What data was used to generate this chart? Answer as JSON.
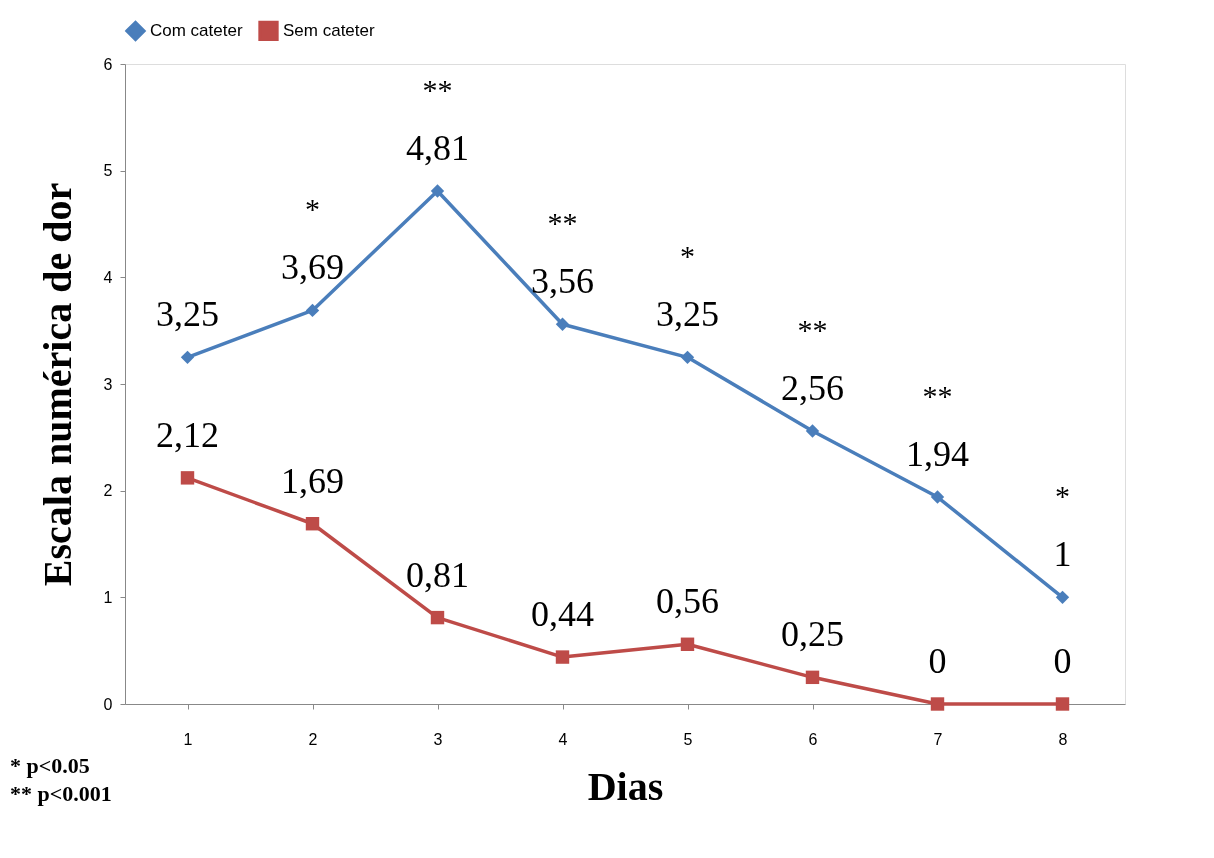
{
  "chart_data": {
    "type": "line",
    "xlabel": "Dias",
    "ylabel": "Escala numérica de dor",
    "categories": [
      "1",
      "2",
      "3",
      "4",
      "5",
      "6",
      "7",
      "8"
    ],
    "series": [
      {
        "name": "Com cateter",
        "color": "#4a7ebb",
        "marker": "diamond",
        "values": [
          3.25,
          3.69,
          4.81,
          3.56,
          3.25,
          2.56,
          1.94,
          1
        ],
        "value_labels": [
          "3,25",
          "3,69",
          "4,81",
          "3,56",
          "3,25",
          "2,56",
          "1,94",
          "1"
        ]
      },
      {
        "name": "Sem cateter",
        "color": "#be4b48",
        "marker": "square",
        "values": [
          2.12,
          1.69,
          0.81,
          0.44,
          0.56,
          0.25,
          0,
          0
        ],
        "value_labels": [
          "2,12",
          "1,69",
          "0,81",
          "0,44",
          "0,56",
          "0,25",
          "0",
          "0"
        ]
      }
    ],
    "ylim": [
      0,
      6
    ],
    "yticks": [
      0,
      1,
      2,
      3,
      4,
      5,
      6
    ],
    "grid": false,
    "legend": "top",
    "line_style": "solid",
    "annotations": [
      {
        "text": "*",
        "x": "2",
        "y": 3.69
      },
      {
        "text": "**",
        "x": "3",
        "y": 4.81
      },
      {
        "text": "**",
        "x": "4",
        "y": 3.56
      },
      {
        "text": "*",
        "x": "5",
        "y": 3.25
      },
      {
        "text": "**",
        "x": "6",
        "y": 2.56
      },
      {
        "text": "**",
        "x": "7",
        "y": 1.94
      },
      {
        "text": "*",
        "x": "8",
        "y": 1
      },
      "* p<0.05",
      "** p<0.001"
    ]
  }
}
